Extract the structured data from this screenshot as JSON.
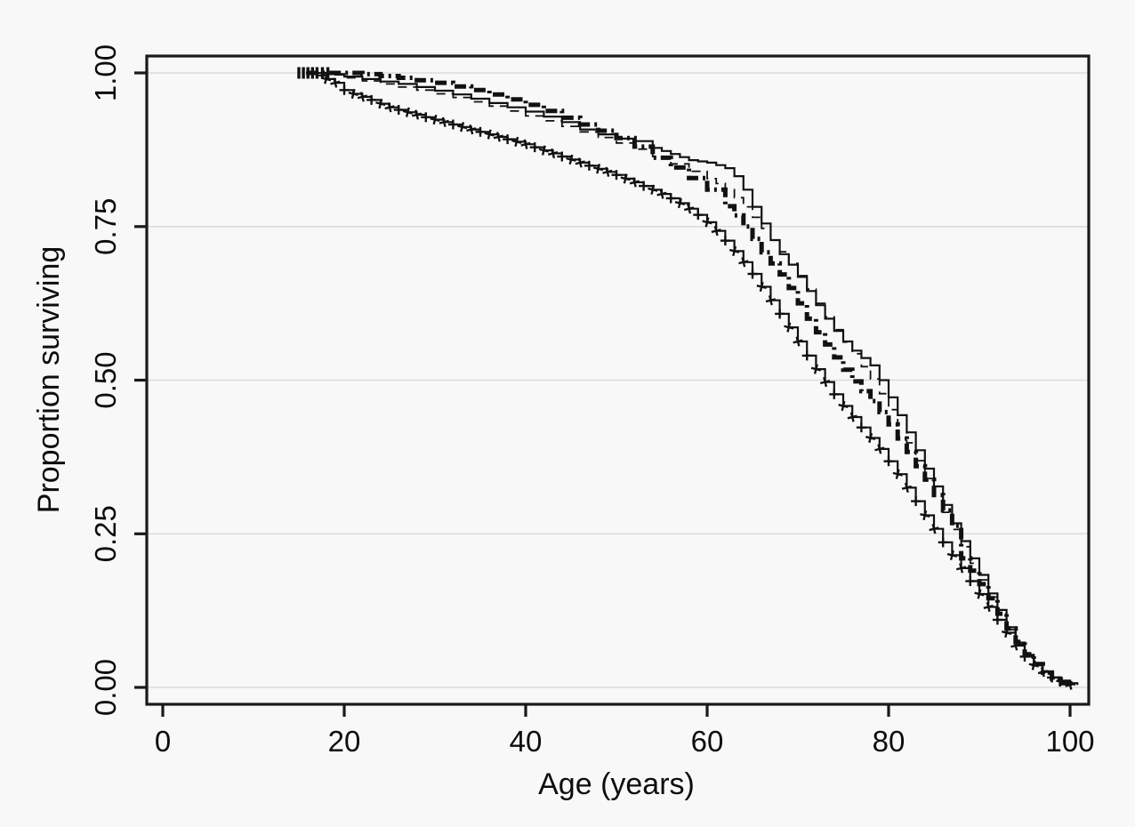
{
  "figure": {
    "background": "#f9f8f9",
    "grid_color": "#dcdcdc",
    "axis_color": "#1a1a1a",
    "curve_color": "#111111"
  },
  "axes": {
    "x_label": "Age (years)",
    "y_label": "Proportion surviving",
    "x_ticks": [
      0,
      20,
      40,
      60,
      80,
      100
    ],
    "y_ticks": [
      "1.00",
      "0.75",
      "0.50",
      "0.25",
      "0.00"
    ],
    "y_tick_values": [
      1.0,
      0.75,
      0.5,
      0.25,
      0.0
    ]
  },
  "chart_data": {
    "type": "line",
    "subtype": "kaplan-meier-step-curves",
    "title": "",
    "xlabel": "Age (years)",
    "ylabel": "Proportion surviving",
    "xlim": [
      0,
      102
    ],
    "ylim": [
      0,
      1
    ],
    "grid": true,
    "legend_position": "none",
    "censor_ticks_at_start": {
      "ages": [
        15.0,
        15.5,
        16.0,
        16.5,
        17.0,
        17.6,
        18.2
      ],
      "value": 1.0
    },
    "series": [
      {
        "name": "solid",
        "style": "solid",
        "points": [
          [
            15.8,
            1.0
          ],
          [
            18,
            0.998
          ],
          [
            20,
            0.994
          ],
          [
            22,
            0.99
          ],
          [
            24,
            0.986
          ],
          [
            26,
            0.982
          ],
          [
            28,
            0.977
          ],
          [
            30,
            0.971
          ],
          [
            32,
            0.965
          ],
          [
            34,
            0.958
          ],
          [
            36,
            0.951
          ],
          [
            38,
            0.944
          ],
          [
            40,
            0.937
          ],
          [
            42,
            0.929
          ],
          [
            44,
            0.92
          ],
          [
            46,
            0.908
          ],
          [
            48,
            0.9
          ],
          [
            50,
            0.893
          ],
          [
            52,
            0.889
          ],
          [
            54,
            0.878
          ],
          [
            55,
            0.873
          ],
          [
            56,
            0.868
          ],
          [
            57,
            0.863
          ],
          [
            58,
            0.858
          ],
          [
            59,
            0.856
          ],
          [
            60,
            0.854
          ],
          [
            61,
            0.85
          ],
          [
            62,
            0.845
          ],
          [
            63,
            0.832
          ],
          [
            64,
            0.81
          ],
          [
            65,
            0.782
          ],
          [
            66,
            0.755
          ],
          [
            67,
            0.728
          ],
          [
            68,
            0.705
          ],
          [
            69,
            0.688
          ],
          [
            70,
            0.668
          ],
          [
            71,
            0.645
          ],
          [
            72,
            0.622
          ],
          [
            73,
            0.6
          ],
          [
            74,
            0.58
          ],
          [
            75,
            0.563
          ],
          [
            76,
            0.548
          ],
          [
            77,
            0.536
          ],
          [
            78,
            0.524
          ],
          [
            79,
            0.5
          ],
          [
            80,
            0.472
          ],
          [
            81,
            0.443
          ],
          [
            82,
            0.415
          ],
          [
            83,
            0.386
          ],
          [
            84,
            0.356
          ],
          [
            85,
            0.327
          ],
          [
            86,
            0.297
          ],
          [
            87,
            0.267
          ],
          [
            88,
            0.238
          ],
          [
            89,
            0.21
          ],
          [
            90,
            0.183
          ],
          [
            91,
            0.153
          ],
          [
            92,
            0.126
          ],
          [
            93,
            0.098
          ],
          [
            94,
            0.073
          ],
          [
            95,
            0.053
          ],
          [
            96,
            0.038
          ],
          [
            97,
            0.026
          ],
          [
            98,
            0.016
          ],
          [
            99,
            0.011
          ],
          [
            100,
            0.007
          ],
          [
            100.8,
            0.004
          ]
        ]
      },
      {
        "name": "dashed",
        "style": "dashed",
        "points": [
          [
            15.8,
            1.0
          ],
          [
            18,
            0.997
          ],
          [
            20,
            0.992
          ],
          [
            22,
            0.987
          ],
          [
            24,
            0.982
          ],
          [
            26,
            0.977
          ],
          [
            28,
            0.972
          ],
          [
            30,
            0.966
          ],
          [
            32,
            0.96
          ],
          [
            34,
            0.953
          ],
          [
            36,
            0.946
          ],
          [
            38,
            0.938
          ],
          [
            40,
            0.93
          ],
          [
            42,
            0.922
          ],
          [
            44,
            0.913
          ],
          [
            46,
            0.904
          ],
          [
            48,
            0.895
          ],
          [
            50,
            0.886
          ],
          [
            52,
            0.876
          ],
          [
            54,
            0.864
          ],
          [
            56,
            0.852
          ],
          [
            58,
            0.84
          ],
          [
            60,
            0.828
          ],
          [
            61,
            0.82
          ],
          [
            62,
            0.81
          ],
          [
            63,
            0.797
          ],
          [
            64,
            0.782
          ],
          [
            65,
            0.765
          ],
          [
            66,
            0.747
          ],
          [
            67,
            0.728
          ],
          [
            68,
            0.709
          ],
          [
            69,
            0.69
          ],
          [
            70,
            0.67
          ],
          [
            71,
            0.648
          ],
          [
            72,
            0.625
          ],
          [
            73,
            0.603
          ],
          [
            74,
            0.582
          ],
          [
            75,
            0.562
          ],
          [
            76,
            0.543
          ],
          [
            77,
            0.522
          ],
          [
            78,
            0.502
          ],
          [
            79,
            0.478
          ],
          [
            80,
            0.452
          ],
          [
            81,
            0.426
          ],
          [
            82,
            0.398
          ],
          [
            83,
            0.369
          ],
          [
            84,
            0.34
          ],
          [
            85,
            0.312
          ],
          [
            86,
            0.285
          ],
          [
            87,
            0.257
          ],
          [
            88,
            0.229
          ],
          [
            89,
            0.202
          ],
          [
            90,
            0.175
          ],
          [
            91,
            0.147
          ],
          [
            92,
            0.12
          ],
          [
            93,
            0.094
          ],
          [
            94,
            0.07
          ],
          [
            95,
            0.051
          ],
          [
            96,
            0.036
          ],
          [
            97,
            0.023
          ],
          [
            98,
            0.014
          ],
          [
            99,
            0.009
          ],
          [
            100,
            0.005
          ],
          [
            100.5,
            0.003
          ]
        ]
      },
      {
        "name": "dashdot-thick",
        "style": "dashdot",
        "points": [
          [
            15.8,
            1.0
          ],
          [
            20,
            1.0
          ],
          [
            22,
            0.998
          ],
          [
            24,
            0.995
          ],
          [
            26,
            0.992
          ],
          [
            28,
            0.988
          ],
          [
            30,
            0.984
          ],
          [
            32,
            0.978
          ],
          [
            34,
            0.972
          ],
          [
            36,
            0.965
          ],
          [
            38,
            0.957
          ],
          [
            40,
            0.948
          ],
          [
            42,
            0.938
          ],
          [
            44,
            0.927
          ],
          [
            46,
            0.916
          ],
          [
            48,
            0.906
          ],
          [
            50,
            0.894
          ],
          [
            52,
            0.88
          ],
          [
            54,
            0.862
          ],
          [
            56,
            0.846
          ],
          [
            58,
            0.829
          ],
          [
            60,
            0.81
          ],
          [
            62,
            0.783
          ],
          [
            63,
            0.768
          ],
          [
            64,
            0.75
          ],
          [
            65,
            0.73
          ],
          [
            66,
            0.708
          ],
          [
            67,
            0.69
          ],
          [
            68,
            0.672
          ],
          [
            69,
            0.65
          ],
          [
            70,
            0.625
          ],
          [
            71,
            0.6
          ],
          [
            72,
            0.578
          ],
          [
            73,
            0.558
          ],
          [
            74,
            0.537
          ],
          [
            75,
            0.517
          ],
          [
            76,
            0.498
          ],
          [
            77,
            0.482
          ],
          [
            78,
            0.466
          ],
          [
            79,
            0.448
          ],
          [
            80,
            0.428
          ],
          [
            81,
            0.405
          ],
          [
            82,
            0.383
          ],
          [
            83,
            0.36
          ],
          [
            84,
            0.338
          ],
          [
            85,
            0.313
          ],
          [
            86,
            0.288
          ],
          [
            87,
            0.263
          ],
          [
            88,
            0.21
          ],
          [
            89,
            0.19
          ],
          [
            90,
            0.168
          ],
          [
            91,
            0.145
          ],
          [
            92,
            0.12
          ],
          [
            93,
            0.096
          ],
          [
            94,
            0.074
          ],
          [
            95,
            0.054
          ],
          [
            96,
            0.038
          ],
          [
            97,
            0.024
          ],
          [
            98,
            0.014
          ],
          [
            99,
            0.007
          ],
          [
            100,
            0.003
          ]
        ]
      },
      {
        "name": "plus-censored",
        "style": "solid-with-plus-marks",
        "points": [
          [
            15.8,
            1.0
          ],
          [
            17,
            0.996
          ],
          [
            18,
            0.99
          ],
          [
            19,
            0.984
          ],
          [
            20,
            0.972
          ],
          [
            21,
            0.966
          ],
          [
            22,
            0.961
          ],
          [
            23,
            0.956
          ],
          [
            24,
            0.95
          ],
          [
            25,
            0.944
          ],
          [
            26,
            0.94
          ],
          [
            27,
            0.936
          ],
          [
            28,
            0.932
          ],
          [
            29,
            0.928
          ],
          [
            30,
            0.924
          ],
          [
            31,
            0.92
          ],
          [
            32,
            0.916
          ],
          [
            33,
            0.912
          ],
          [
            34,
            0.908
          ],
          [
            35,
            0.904
          ],
          [
            36,
            0.9
          ],
          [
            37,
            0.896
          ],
          [
            38,
            0.892
          ],
          [
            39,
            0.888
          ],
          [
            40,
            0.884
          ],
          [
            41,
            0.879
          ],
          [
            42,
            0.874
          ],
          [
            43,
            0.869
          ],
          [
            44,
            0.864
          ],
          [
            45,
            0.859
          ],
          [
            46,
            0.854
          ],
          [
            47,
            0.849
          ],
          [
            48,
            0.844
          ],
          [
            49,
            0.839
          ],
          [
            50,
            0.834
          ],
          [
            51,
            0.828
          ],
          [
            52,
            0.822
          ],
          [
            53,
            0.816
          ],
          [
            54,
            0.81
          ],
          [
            55,
            0.803
          ],
          [
            56,
            0.796
          ],
          [
            57,
            0.788
          ],
          [
            58,
            0.779
          ],
          [
            59,
            0.769
          ],
          [
            60,
            0.757
          ],
          [
            61,
            0.743
          ],
          [
            62,
            0.727
          ],
          [
            63,
            0.71
          ],
          [
            64,
            0.692
          ],
          [
            65,
            0.673
          ],
          [
            66,
            0.652
          ],
          [
            67,
            0.63
          ],
          [
            68,
            0.608
          ],
          [
            69,
            0.586
          ],
          [
            70,
            0.563
          ],
          [
            71,
            0.54
          ],
          [
            72,
            0.518
          ],
          [
            73,
            0.497
          ],
          [
            74,
            0.477
          ],
          [
            75,
            0.458
          ],
          [
            76,
            0.44
          ],
          [
            77,
            0.423
          ],
          [
            78,
            0.406
          ],
          [
            79,
            0.388
          ],
          [
            80,
            0.368
          ],
          [
            81,
            0.347
          ],
          [
            82,
            0.325
          ],
          [
            83,
            0.303
          ],
          [
            84,
            0.28
          ],
          [
            85,
            0.258
          ],
          [
            86,
            0.236
          ],
          [
            87,
            0.215
          ],
          [
            88,
            0.194
          ],
          [
            89,
            0.173
          ],
          [
            90,
            0.152
          ],
          [
            91,
            0.131
          ],
          [
            92,
            0.11
          ],
          [
            93,
            0.089
          ],
          [
            94,
            0.068
          ],
          [
            95,
            0.05
          ],
          [
            96,
            0.036
          ],
          [
            97,
            0.025
          ],
          [
            98,
            0.016
          ],
          [
            99,
            0.009
          ],
          [
            100,
            0.004
          ]
        ]
      }
    ]
  }
}
